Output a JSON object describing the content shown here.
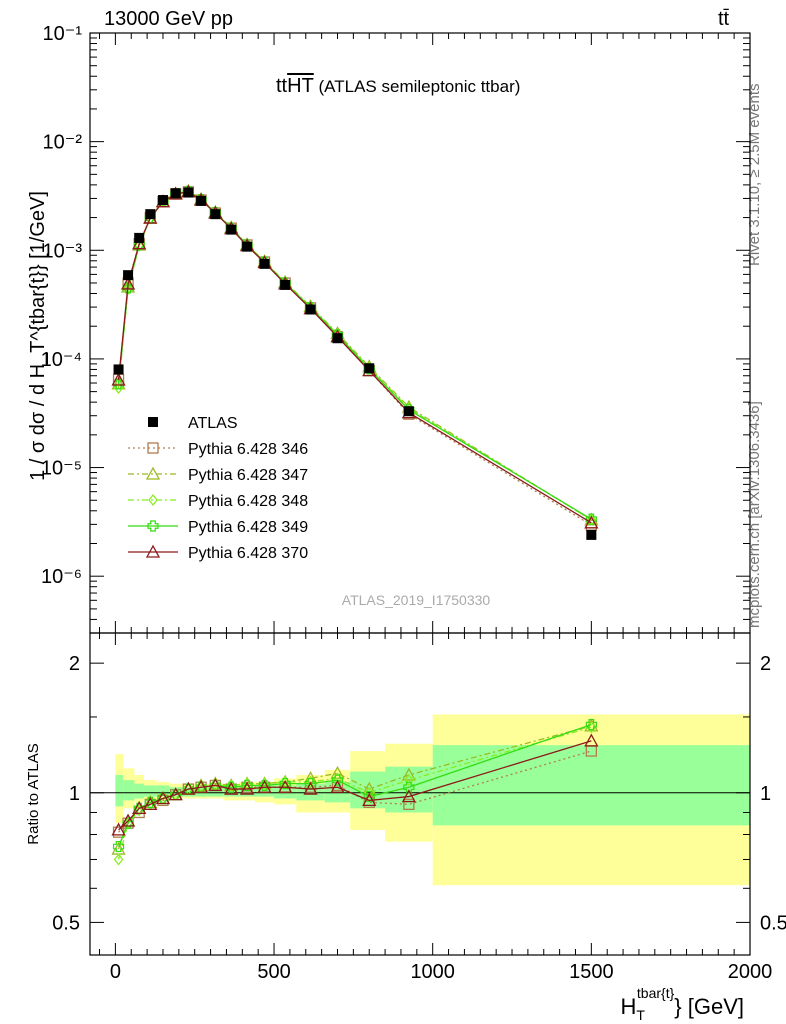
{
  "header": {
    "energy_label": "13000 GeV pp",
    "process_label": "tt̄"
  },
  "side_labels": {
    "rivet": "Rivet 3.1.10, ≥ 2.5M events",
    "mcplots": "mcplots.cern.ch [arXiv:1306.3436]"
  },
  "chart_data": [
    {
      "type": "line",
      "panel": "main",
      "title_main": "tt",
      "title_overline": "HT",
      "title_rest": " (ATLAS semileptonic ttbar)",
      "watermark": "ATLAS_2019_I1750330",
      "ylabel": "1 / σ dσ / d H_T^{tbar{t}} [1/GeV]",
      "yscale": "log",
      "xlim": [
        -80,
        2000
      ],
      "ylim": [
        3e-07,
        0.1
      ],
      "y_tick_labels": [
        "10⁻⁶",
        "10⁻⁵",
        "10⁻⁴",
        "10⁻³",
        "10⁻²",
        "10⁻¹"
      ],
      "legend_position": "lower-left",
      "x": [
        10,
        40,
        75,
        110,
        150,
        190,
        230,
        270,
        315,
        365,
        415,
        470,
        535,
        615,
        700,
        800,
        925,
        1500
      ],
      "series": [
        {
          "name": "ATLAS",
          "color": "#000000",
          "marker": "filled-square",
          "values": [
            8e-05,
            0.00059,
            0.0013,
            0.00215,
            0.0029,
            0.00335,
            0.0034,
            0.00285,
            0.00215,
            0.00155,
            0.00108,
            0.00075,
            0.00048,
            0.000285,
            0.000155,
            8.2e-05,
            3.3e-05,
            2.4e-06
          ]
        },
        {
          "name": "Pythia 6.428 346",
          "color": "#b07d4f",
          "marker": "open-square",
          "dash": "2,3",
          "values": [
            6.5e-05,
            0.0005,
            0.00115,
            0.002,
            0.0028,
            0.0033,
            0.00345,
            0.0029,
            0.0022,
            0.0016,
            0.00112,
            0.00078,
            0.0005,
            0.000295,
            0.00016,
            7.8e-05,
            3.1e-05,
            2.95e-06
          ]
        },
        {
          "name": "Pythia 6.428 347",
          "color": "#9bbb22",
          "marker": "open-triangle",
          "dash": "6,3,2,3",
          "values": [
            5.9e-05,
            0.00046,
            0.00112,
            0.00198,
            0.00282,
            0.00332,
            0.0035,
            0.00295,
            0.00225,
            0.00162,
            0.00113,
            0.00079,
            0.00051,
            0.000305,
            0.000172,
            8.5e-05,
            3.6e-05,
            3.3e-06
          ]
        },
        {
          "name": "Pythia 6.428 348",
          "color": "#88ee22",
          "marker": "open-diamond",
          "dash": "6,3,2,3",
          "values": [
            5.4e-05,
            0.00044,
            0.0011,
            0.00197,
            0.00283,
            0.00332,
            0.0035,
            0.00293,
            0.00222,
            0.0016,
            0.00112,
            0.00078,
            0.0005,
            0.0003,
            0.000168,
            8.3e-05,
            3.5e-05,
            3.3e-06
          ]
        },
        {
          "name": "Pythia 6.428 349",
          "color": "#33dd11",
          "marker": "open-cross",
          "dash": "",
          "values": [
            5.9e-05,
            0.00045,
            0.00112,
            0.00198,
            0.00282,
            0.00332,
            0.00348,
            0.00293,
            0.00222,
            0.0016,
            0.00112,
            0.00078,
            0.0005,
            0.000297,
            0.000166,
            8.1e-05,
            3.4e-05,
            3.35e-06
          ]
        },
        {
          "name": "Pythia 6.428 370",
          "color": "#8b1a1a",
          "marker": "open-triangle",
          "dash": "",
          "values": [
            6.4e-05,
            0.00049,
            0.00115,
            0.00198,
            0.0028,
            0.0033,
            0.00345,
            0.0029,
            0.0022,
            0.00158,
            0.0011,
            0.00077,
            0.00049,
            0.00029,
            0.00016,
            7.8e-05,
            3.2e-05,
            3.1e-06
          ]
        }
      ]
    },
    {
      "type": "line",
      "panel": "ratio",
      "ylabel": "Ratio to ATLAS",
      "xlabel_main": "H",
      "xlabel_sub": "T",
      "xlabel_sup": "tbar{t}",
      "xlabel_rest": "} [GeV]",
      "yscale": "log",
      "xlim": [
        -80,
        2000
      ],
      "ylim": [
        0.42,
        2.35
      ],
      "x_tick_labels": [
        "0",
        "500",
        "1000",
        "1500",
        "2000"
      ],
      "y_tick_labels": [
        "0.5",
        "1",
        "2"
      ],
      "band_colors": {
        "inner": "#99ff99",
        "outer": "#ffff99"
      },
      "bins": [
        {
          "lo": 0,
          "hi": 25,
          "inner": [
            0.93,
            1.1
          ],
          "outer": [
            0.85,
            1.23
          ]
        },
        {
          "lo": 25,
          "hi": 60,
          "inner": [
            0.96,
            1.07
          ],
          "outer": [
            0.92,
            1.14
          ]
        },
        {
          "lo": 60,
          "hi": 90,
          "inner": [
            0.97,
            1.05
          ],
          "outer": [
            0.95,
            1.1
          ]
        },
        {
          "lo": 90,
          "hi": 130,
          "inner": [
            0.98,
            1.04
          ],
          "outer": [
            0.96,
            1.07
          ]
        },
        {
          "lo": 130,
          "hi": 170,
          "inner": [
            0.98,
            1.04
          ],
          "outer": [
            0.96,
            1.06
          ]
        },
        {
          "lo": 170,
          "hi": 210,
          "inner": [
            0.98,
            1.03
          ],
          "outer": [
            0.97,
            1.05
          ]
        },
        {
          "lo": 210,
          "hi": 250,
          "inner": [
            0.98,
            1.03
          ],
          "outer": [
            0.97,
            1.05
          ]
        },
        {
          "lo": 250,
          "hi": 290,
          "inner": [
            0.98,
            1.03
          ],
          "outer": [
            0.97,
            1.05
          ]
        },
        {
          "lo": 290,
          "hi": 340,
          "inner": [
            0.98,
            1.03
          ],
          "outer": [
            0.97,
            1.05
          ]
        },
        {
          "lo": 340,
          "hi": 390,
          "inner": [
            0.98,
            1.03
          ],
          "outer": [
            0.96,
            1.05
          ]
        },
        {
          "lo": 390,
          "hi": 440,
          "inner": [
            0.98,
            1.03
          ],
          "outer": [
            0.96,
            1.06
          ]
        },
        {
          "lo": 440,
          "hi": 500,
          "inner": [
            0.98,
            1.04
          ],
          "outer": [
            0.95,
            1.06
          ]
        },
        {
          "lo": 500,
          "hi": 570,
          "inner": [
            0.97,
            1.04
          ],
          "outer": [
            0.94,
            1.08
          ]
        },
        {
          "lo": 570,
          "hi": 660,
          "inner": [
            0.96,
            1.05
          ],
          "outer": [
            0.9,
            1.1
          ]
        },
        {
          "lo": 660,
          "hi": 740,
          "inner": [
            0.95,
            1.06
          ],
          "outer": [
            0.9,
            1.13
          ]
        },
        {
          "lo": 740,
          "hi": 850,
          "inner": [
            0.92,
            1.12
          ],
          "outer": [
            0.82,
            1.25
          ]
        },
        {
          "lo": 850,
          "hi": 1000,
          "inner": [
            0.9,
            1.15
          ],
          "outer": [
            0.77,
            1.3
          ]
        },
        {
          "lo": 1000,
          "hi": 2000,
          "inner": [
            0.84,
            1.29
          ],
          "outer": [
            0.61,
            1.52
          ]
        }
      ],
      "x": [
        10,
        40,
        75,
        110,
        150,
        190,
        230,
        270,
        315,
        365,
        415,
        470,
        535,
        615,
        700,
        800,
        925,
        1500
      ],
      "series": [
        {
          "name": "Pythia 6.428 346",
          "color": "#b07d4f",
          "marker": "open-square",
          "dash": "2,3",
          "values": [
            0.81,
            0.85,
            0.9,
            0.94,
            0.96,
            0.99,
            1.02,
            1.03,
            1.04,
            1.02,
            1.03,
            1.03,
            1.03,
            1.03,
            1.04,
            0.95,
            0.94,
            1.25
          ]
        },
        {
          "name": "Pythia 6.428 347",
          "color": "#9bbb22",
          "marker": "open-triangle",
          "dash": "6,3,2,3",
          "values": [
            0.74,
            0.86,
            0.92,
            0.95,
            0.97,
            0.99,
            1.02,
            1.04,
            1.05,
            1.04,
            1.05,
            1.05,
            1.06,
            1.08,
            1.11,
            1.02,
            1.1,
            1.43
          ]
        },
        {
          "name": "Pythia 6.428 348",
          "color": "#88ee22",
          "marker": "open-diamond",
          "dash": "6,3,2,3",
          "values": [
            0.7,
            0.85,
            0.91,
            0.94,
            0.97,
            0.99,
            1.02,
            1.03,
            1.04,
            1.04,
            1.05,
            1.05,
            1.06,
            1.06,
            1.08,
            1.0,
            1.07,
            1.42
          ]
        },
        {
          "name": "Pythia 6.428 349",
          "color": "#33dd11",
          "marker": "open-cross",
          "dash": "",
          "values": [
            0.75,
            0.85,
            0.92,
            0.95,
            0.97,
            0.99,
            1.02,
            1.03,
            1.04,
            1.03,
            1.04,
            1.04,
            1.05,
            1.05,
            1.07,
            0.98,
            1.03,
            1.44
          ]
        },
        {
          "name": "Pythia 6.428 370",
          "color": "#8b1a1a",
          "marker": "open-triangle",
          "dash": "",
          "values": [
            0.82,
            0.86,
            0.92,
            0.94,
            0.97,
            0.99,
            1.02,
            1.03,
            1.04,
            1.02,
            1.02,
            1.03,
            1.03,
            1.02,
            1.03,
            0.96,
            0.98,
            1.32
          ]
        }
      ]
    }
  ]
}
